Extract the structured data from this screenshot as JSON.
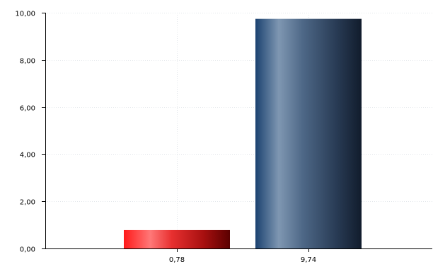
{
  "chart_data": {
    "type": "bar",
    "categories": [
      "0,78",
      "9,74"
    ],
    "values": [
      0.78,
      9.74
    ],
    "ylim": [
      0,
      10
    ],
    "yticks": [
      "0,00",
      "2,00",
      "4,00",
      "6,00",
      "8,00",
      "10,00"
    ],
    "ytick_values": [
      0,
      2,
      4,
      6,
      8,
      10
    ],
    "grid": true,
    "legend": "none",
    "colors": [
      "#ff0000",
      "#1a3a5c"
    ],
    "title": "",
    "xlabel": "",
    "ylabel": ""
  }
}
